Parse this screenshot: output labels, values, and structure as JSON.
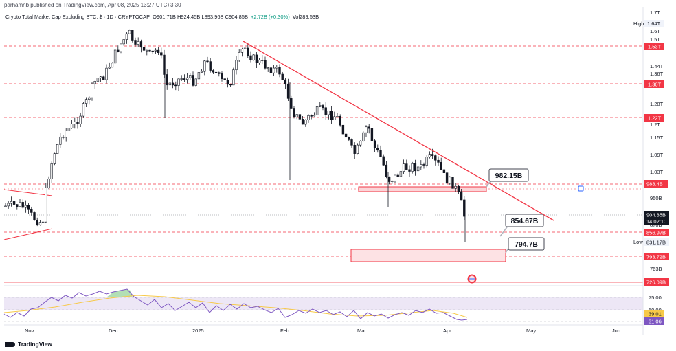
{
  "header": {
    "publisher": "parhamnb published on TradingView.com, Apr 08, 2025 13:27 UTC+3:30",
    "symbol": "Crypto Total Market Cap Excluding BTC, $ · 1D · CRYPTOCAP",
    "open": "O901.71B",
    "high": "H924.45B",
    "low": "L893.96B",
    "close": "C904.85B",
    "change": "+2.72B (+0.30%)",
    "volume": "Vol289.53B"
  },
  "colors": {
    "up": "#089981",
    "down": "#f23645",
    "candle": "#131722",
    "trendline": "#f23645",
    "zone_fill": "#fbd5d8",
    "rsi_line": "#7e57c2",
    "rsi_ma": "#f7c948",
    "rsi_band": "#ede7f6"
  },
  "price_axis": {
    "ticks": [
      "1.7T",
      "1.6T",
      "1.5T",
      "1.44T",
      "1.36T",
      "1.28T",
      "1.2T",
      "1.15T",
      "1.09T",
      "1.03T",
      "950B",
      "870B",
      "763B",
      "726.09B"
    ],
    "level_tags": [
      "1.53T",
      "1.36T",
      "1.22T",
      "988.4B",
      "856.97B",
      "793.72B",
      "726.09B"
    ],
    "high_label": "High",
    "high_value": "1.64T",
    "low_label": "Low",
    "low_value": "831.17B",
    "current_price": "904.85B",
    "countdown": "14:02:10"
  },
  "rsi_axis": {
    "ticks": [
      "75.00",
      "50.00"
    ],
    "ma_value": "39.01",
    "rsi_value": "31.06"
  },
  "time_axis": {
    "labels": [
      "Nov",
      "Dec",
      "2025",
      "Feb",
      "Mar",
      "Apr",
      "May",
      "Jun"
    ]
  },
  "annotations": {
    "resistance_label": "982.15B",
    "support_label": "854.67B",
    "target_label": "794.7B"
  },
  "footer": {
    "brand": "TradingView"
  }
}
